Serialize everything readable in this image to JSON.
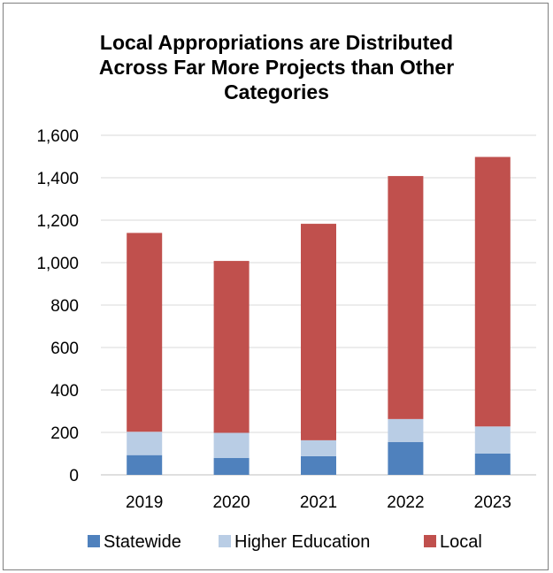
{
  "chart_data": {
    "type": "bar",
    "stacked": true,
    "title_lines": [
      "Local Appropriations are Distributed",
      "Across Far More Projects than Other",
      "Categories"
    ],
    "categories": [
      "2019",
      "2020",
      "2021",
      "2022",
      "2023"
    ],
    "series": [
      {
        "name": "Statewide",
        "values": [
          93,
          80,
          88,
          155,
          100
        ],
        "color": "#4f81bd"
      },
      {
        "name": "Higher Education",
        "values": [
          110,
          118,
          75,
          108,
          128
        ],
        "color": "#b9cde5"
      },
      {
        "name": "Local",
        "values": [
          937,
          810,
          1020,
          1145,
          1270
        ],
        "color": "#c0504d"
      }
    ],
    "ylim": [
      0,
      1600
    ],
    "yticks": [
      0,
      200,
      400,
      600,
      800,
      1000,
      1200,
      1400,
      1600
    ],
    "ytick_labels": [
      "0",
      "200",
      "400",
      "600",
      "800",
      "1,000",
      "1,200",
      "1,400",
      "1,600"
    ],
    "grid": true,
    "legend_position": "bottom"
  }
}
